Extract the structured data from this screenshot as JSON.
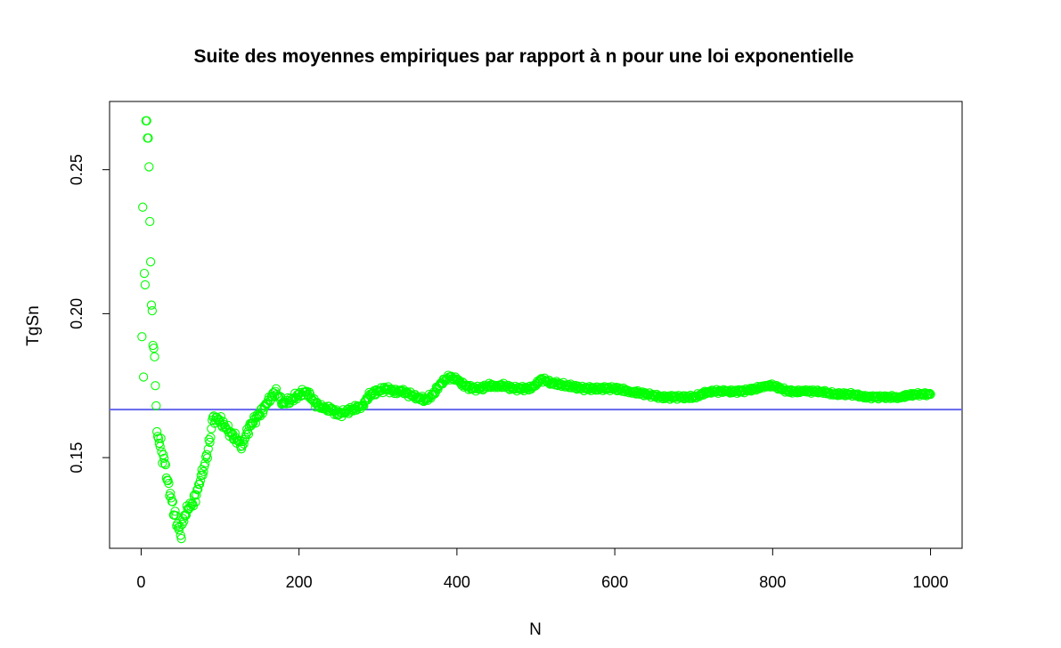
{
  "chart_data": {
    "type": "scatter",
    "title": "Suite des moyennes empiriques par rapport à n pour une loi exponentielle",
    "xlabel": "N",
    "ylabel": "TgSn",
    "xlim": [
      -40,
      1040
    ],
    "ylim": [
      0.1185,
      0.2737
    ],
    "x_ticks": [
      0,
      200,
      400,
      600,
      800,
      1000
    ],
    "x_tick_labels": [
      "0",
      "200",
      "400",
      "600",
      "800",
      "1000"
    ],
    "y_ticks": [
      0.15,
      0.2,
      0.25
    ],
    "y_tick_labels": [
      "0.15",
      "0.20",
      "0.25"
    ],
    "grid": false,
    "legend": "none",
    "reference_line": {
      "orientation": "horizontal",
      "y": 0.1667,
      "color": "#6666ee"
    },
    "series": [
      {
        "marker": "open-circle",
        "color": "#00ff00",
        "control_points": [
          [
            1,
            0.192
          ],
          [
            2,
            0.237
          ],
          [
            3,
            0.178
          ],
          [
            4,
            0.214
          ],
          [
            5,
            0.21
          ],
          [
            6,
            0.267
          ],
          [
            7,
            0.267
          ],
          [
            8,
            0.261
          ],
          [
            9,
            0.261
          ],
          [
            10,
            0.251
          ],
          [
            11,
            0.232
          ],
          [
            12,
            0.218
          ],
          [
            13,
            0.203
          ],
          [
            14,
            0.201
          ],
          [
            15,
            0.189
          ],
          [
            16,
            0.188
          ],
          [
            17,
            0.185
          ],
          [
            18,
            0.175
          ],
          [
            19,
            0.168
          ],
          [
            20,
            0.159
          ],
          [
            23,
            0.155
          ],
          [
            26,
            0.152
          ],
          [
            30,
            0.148
          ],
          [
            34,
            0.142
          ],
          [
            38,
            0.136
          ],
          [
            42,
            0.13
          ],
          [
            46,
            0.127
          ],
          [
            50,
            0.123
          ],
          [
            55,
            0.13
          ],
          [
            60,
            0.132
          ],
          [
            65,
            0.134
          ],
          [
            70,
            0.137
          ],
          [
            75,
            0.142
          ],
          [
            80,
            0.147
          ],
          [
            85,
            0.153
          ],
          [
            88,
            0.157
          ],
          [
            90,
            0.163
          ],
          [
            95,
            0.164
          ],
          [
            100,
            0.163
          ],
          [
            108,
            0.16
          ],
          [
            115,
            0.158
          ],
          [
            122,
            0.156
          ],
          [
            128,
            0.154
          ],
          [
            133,
            0.158
          ],
          [
            140,
            0.162
          ],
          [
            150,
            0.165
          ],
          [
            160,
            0.169
          ],
          [
            170,
            0.173
          ],
          [
            180,
            0.169
          ],
          [
            190,
            0.17
          ],
          [
            200,
            0.172
          ],
          [
            210,
            0.173
          ],
          [
            220,
            0.169
          ],
          [
            230,
            0.167
          ],
          [
            240,
            0.167
          ],
          [
            250,
            0.165
          ],
          [
            260,
            0.166
          ],
          [
            270,
            0.167
          ],
          [
            280,
            0.168
          ],
          [
            290,
            0.172
          ],
          [
            300,
            0.173
          ],
          [
            310,
            0.174
          ],
          [
            320,
            0.173
          ],
          [
            330,
            0.173
          ],
          [
            340,
            0.172
          ],
          [
            350,
            0.171
          ],
          [
            360,
            0.17
          ],
          [
            370,
            0.172
          ],
          [
            380,
            0.176
          ],
          [
            390,
            0.178
          ],
          [
            400,
            0.177
          ],
          [
            410,
            0.175
          ],
          [
            420,
            0.174
          ],
          [
            430,
            0.174
          ],
          [
            440,
            0.175
          ],
          [
            450,
            0.175
          ],
          [
            460,
            0.175
          ],
          [
            470,
            0.174
          ],
          [
            480,
            0.174
          ],
          [
            490,
            0.174
          ],
          [
            500,
            0.175
          ],
          [
            505,
            0.177
          ],
          [
            510,
            0.177
          ],
          [
            520,
            0.176
          ],
          [
            540,
            0.175
          ],
          [
            560,
            0.174
          ],
          [
            580,
            0.174
          ],
          [
            600,
            0.174
          ],
          [
            620,
            0.173
          ],
          [
            640,
            0.172
          ],
          [
            660,
            0.171
          ],
          [
            680,
            0.171
          ],
          [
            700,
            0.171
          ],
          [
            720,
            0.173
          ],
          [
            740,
            0.173
          ],
          [
            760,
            0.173
          ],
          [
            780,
            0.174
          ],
          [
            790,
            0.175
          ],
          [
            800,
            0.175
          ],
          [
            820,
            0.173
          ],
          [
            840,
            0.173
          ],
          [
            860,
            0.173
          ],
          [
            880,
            0.172
          ],
          [
            900,
            0.172
          ],
          [
            920,
            0.171
          ],
          [
            940,
            0.171
          ],
          [
            960,
            0.171
          ],
          [
            980,
            0.172
          ],
          [
            1000,
            0.172
          ]
        ]
      }
    ]
  }
}
